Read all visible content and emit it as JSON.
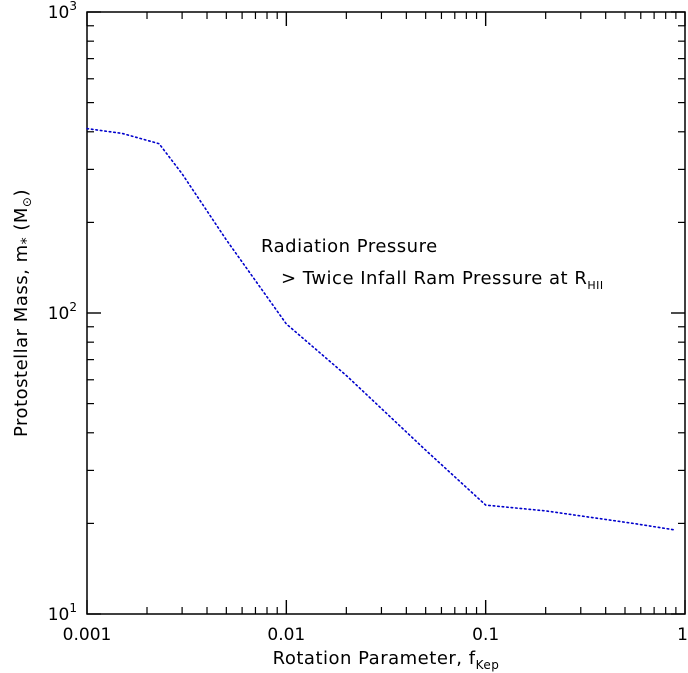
{
  "chart_data": {
    "type": "line",
    "title": "",
    "xlabel": {
      "main": "Rotation Parameter, f",
      "sub": "Kep"
    },
    "ylabel": {
      "main": "Protostellar Mass, m",
      "star": "*",
      "unit": "(M",
      "sun": "⊙",
      "close": ")"
    },
    "x_scale": "log",
    "y_scale": "log",
    "xlim": [
      0.001,
      1
    ],
    "ylim": [
      10,
      1000
    ],
    "x_ticks": [
      {
        "value": 0.001,
        "label": "0.001"
      },
      {
        "value": 0.01,
        "label": "0.01"
      },
      {
        "value": 0.1,
        "label": "0.1"
      },
      {
        "value": 1,
        "label": "1"
      }
    ],
    "y_ticks": [
      {
        "value": 10,
        "base": "10",
        "exp": "1"
      },
      {
        "value": 100,
        "base": "10",
        "exp": "2"
      },
      {
        "value": 1000,
        "base": "10",
        "exp": "3"
      }
    ],
    "grid": false,
    "series": [
      {
        "color": "#0000cc",
        "line_style": "dotted",
        "x": [
          0.001,
          0.0015,
          0.0023,
          0.003,
          0.005,
          0.01,
          0.02,
          0.05,
          0.1,
          0.2,
          0.55,
          0.9
        ],
        "y": [
          410,
          395,
          365,
          290,
          175,
          92,
          62,
          35,
          23,
          22,
          20,
          19
        ]
      }
    ],
    "annotations": [
      {
        "line1": "Radiation Pressure",
        "line2": "> Twice Infall Ram Pressure at R",
        "line2_sub": "HII"
      }
    ]
  }
}
